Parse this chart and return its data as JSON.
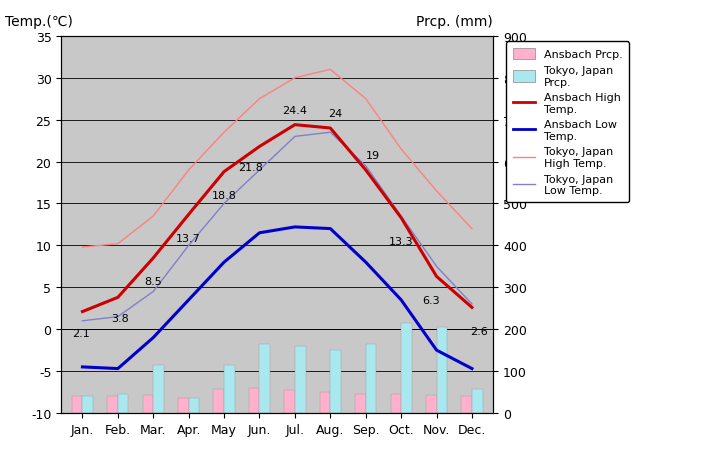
{
  "months": [
    "Jan.",
    "Feb.",
    "Mar.",
    "Apr.",
    "May",
    "Jun.",
    "Jul.",
    "Aug.",
    "Sep.",
    "Oct.",
    "Nov.",
    "Dec."
  ],
  "ansbach_high": [
    2.1,
    3.8,
    8.5,
    13.7,
    18.8,
    21.8,
    24.4,
    24.0,
    19.0,
    13.3,
    6.3,
    2.6
  ],
  "ansbach_low": [
    -4.5,
    -4.7,
    -1.0,
    3.5,
    8.0,
    11.5,
    12.2,
    12.0,
    8.0,
    3.5,
    -2.5,
    -4.7
  ],
  "tokyo_high": [
    9.8,
    10.2,
    13.5,
    19.0,
    23.5,
    27.5,
    30.0,
    31.0,
    27.5,
    21.5,
    16.5,
    12.0
  ],
  "tokyo_low": [
    1.0,
    1.5,
    4.5,
    10.0,
    15.0,
    19.0,
    23.0,
    23.5,
    19.5,
    13.5,
    7.5,
    3.0
  ],
  "ansbach_prcp_mm": [
    40,
    40,
    42,
    35,
    58,
    60,
    55,
    50,
    45,
    45,
    42,
    40
  ],
  "tokyo_prcp_mm": [
    40,
    45,
    115,
    35,
    115,
    165,
    160,
    150,
    165,
    215,
    205,
    58
  ],
  "temp_ylim": [
    -10,
    35
  ],
  "prcp_ylim": [
    0,
    900
  ],
  "background_color": "#c8c8c8",
  "plot_bg_color": "#c8c8c8",
  "ansbach_high_color": "#cc0000",
  "ansbach_low_color": "#0000cc",
  "tokyo_high_color": "#ff8080",
  "tokyo_low_color": "#8080cc",
  "ansbach_prcp_color": "#ffb0cc",
  "tokyo_prcp_color": "#aae8f0",
  "title_left": "Temp.(℃)",
  "title_right": "Prcp. (mm)",
  "annot_high": [
    "2.1",
    "3.8",
    "8.5",
    "13.7",
    "18.8",
    "21.8",
    "24.4",
    "24",
    "19",
    "13.3",
    "6.3",
    "2.6"
  ],
  "annot_high_offsets_x": [
    -0.05,
    0.05,
    0.0,
    0.0,
    0.0,
    -0.25,
    0.0,
    0.15,
    0.2,
    0.0,
    -0.15,
    0.2
  ],
  "annot_high_offsets_y": [
    -2.5,
    -2.5,
    -2.8,
    -2.8,
    -2.8,
    -2.5,
    1.8,
    1.8,
    1.8,
    -2.8,
    -2.8,
    -2.8
  ]
}
